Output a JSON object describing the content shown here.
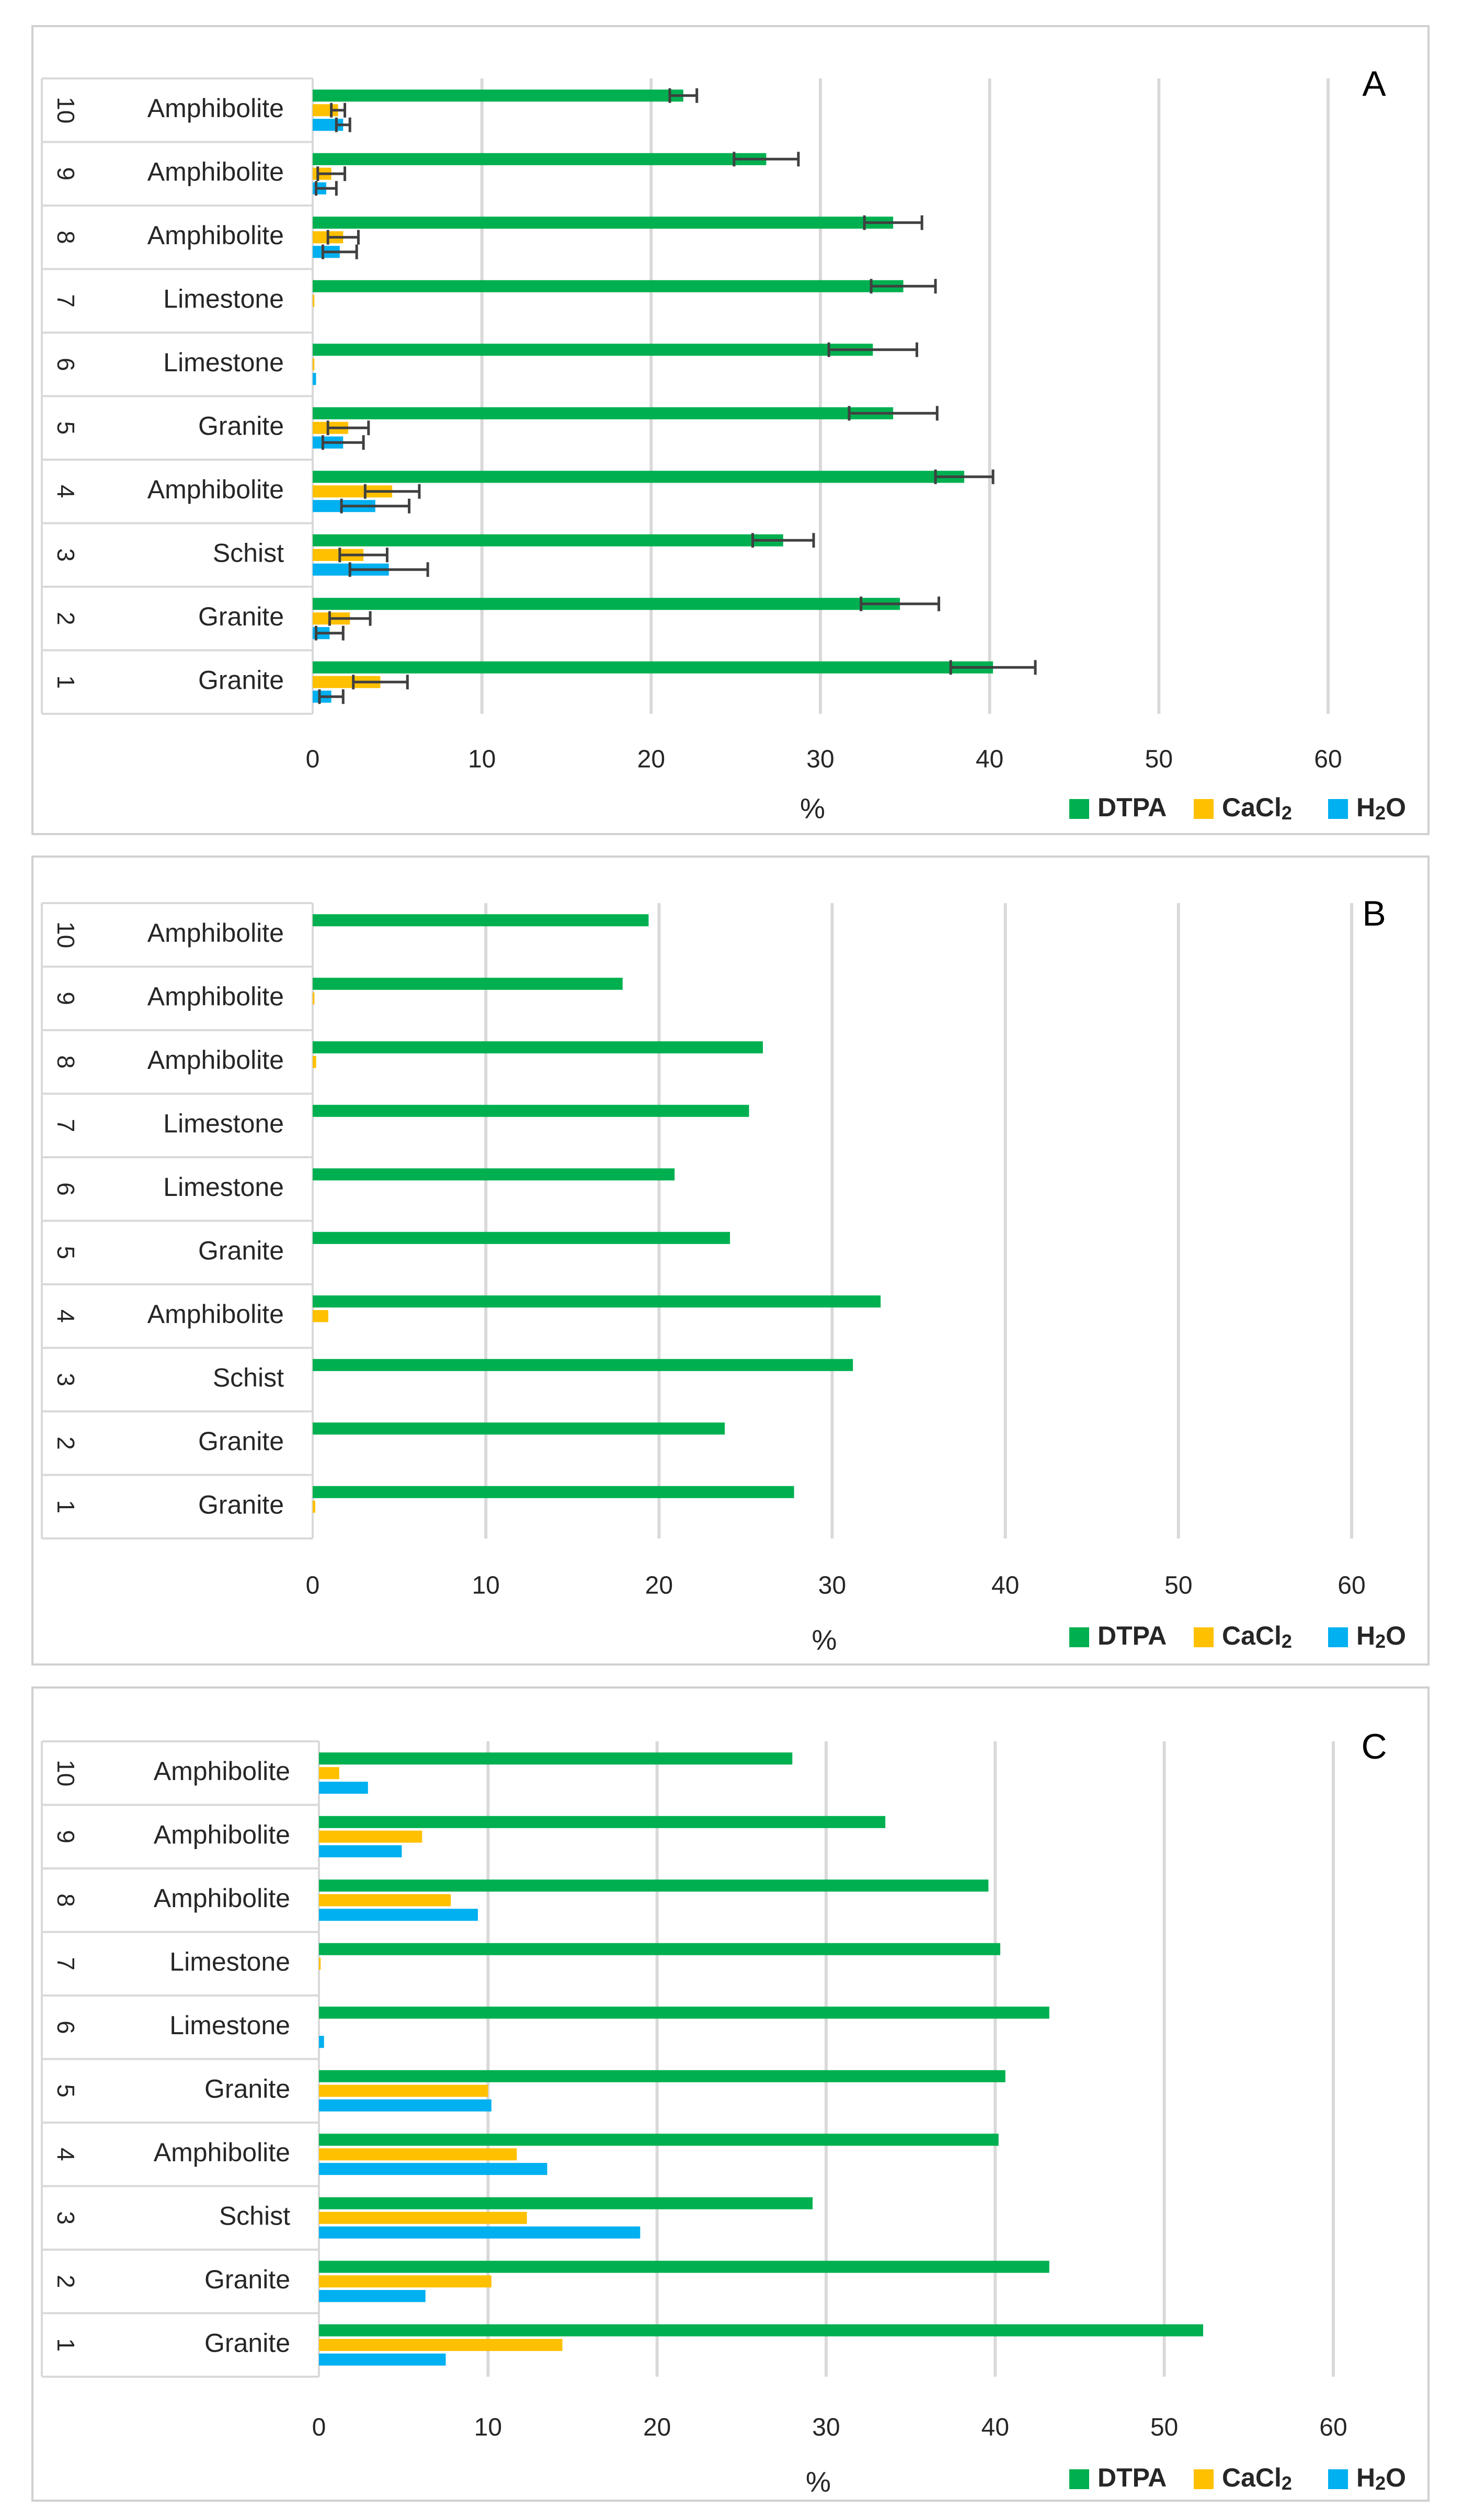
{
  "chart_data": [
    {
      "type": "bar",
      "orientation": "horizontal",
      "panel_label": "A",
      "categories": [
        "1",
        "2",
        "3",
        "4",
        "5",
        "6",
        "7",
        "8",
        "9",
        "10"
      ],
      "category_labels": [
        "Granite",
        "Granite",
        "Schist",
        "Amphibolite",
        "Granite",
        "Limestone",
        "Limestone",
        "Amphibolite",
        "Amphibolite",
        "Amphibolite"
      ],
      "series": [
        {
          "name": "DTPA",
          "sub": "",
          "color": "#00b050",
          "values": [
            40.2,
            34.7,
            27.8,
            38.5,
            34.3,
            33.1,
            34.9,
            34.3,
            26.8,
            21.9
          ],
          "errors": [
            2.5,
            2.3,
            1.8,
            1.7,
            2.6,
            2.6,
            1.9,
            1.7,
            1.9,
            0.8
          ]
        },
        {
          "name": "CaCl",
          "sub": "2",
          "color": "#ffc000",
          "values": [
            4.0,
            2.2,
            3.0,
            4.7,
            2.1,
            0.1,
            0.1,
            1.8,
            1.1,
            1.5
          ],
          "errors": [
            1.6,
            1.2,
            1.4,
            1.6,
            1.2,
            0,
            0,
            0.9,
            0.8,
            0.4
          ]
        },
        {
          "name": "H",
          "sub": "2",
          "suffix": "O",
          "color": "#00b0f0",
          "values": [
            1.1,
            1.0,
            4.5,
            3.7,
            1.8,
            0.2,
            0,
            1.6,
            0.8,
            1.8
          ],
          "errors": [
            0.7,
            0.8,
            2.3,
            2.0,
            1.2,
            0,
            0,
            1.0,
            0.6,
            0.4
          ]
        }
      ],
      "xlabel": "%",
      "xlim": [
        0,
        60
      ],
      "xticks": [
        "0",
        "10",
        "20",
        "30",
        "40",
        "50",
        "60"
      ],
      "error_bars": true,
      "legend_position": "bottom-right"
    },
    {
      "type": "bar",
      "orientation": "horizontal",
      "panel_label": "B",
      "categories": [
        "1",
        "2",
        "3",
        "4",
        "5",
        "6",
        "7",
        "8",
        "9",
        "10"
      ],
      "category_labels": [
        "Granite",
        "Granite",
        "Schist",
        "Amphibolite",
        "Granite",
        "Limestone",
        "Limestone",
        "Amphibolite",
        "Amphibolite",
        "Amphibolite"
      ],
      "series": [
        {
          "name": "DTPA",
          "sub": "",
          "color": "#00b050",
          "values": [
            27.8,
            23.8,
            31.2,
            32.8,
            24.1,
            20.9,
            25.2,
            26.0,
            17.9,
            19.4
          ]
        },
        {
          "name": "CaCl",
          "sub": "2",
          "color": "#ffc000",
          "values": [
            0.15,
            0,
            0,
            0.9,
            0,
            0,
            0,
            0.2,
            0.1,
            0
          ]
        },
        {
          "name": "H",
          "sub": "2",
          "suffix": "O",
          "color": "#00b0f0",
          "values": [
            0,
            0,
            0,
            0,
            0,
            0,
            0,
            0,
            0,
            0
          ]
        }
      ],
      "xlabel": "%",
      "xlim": [
        0,
        60
      ],
      "xticks": [
        "0",
        "10",
        "20",
        "30",
        "40",
        "50",
        "60"
      ],
      "error_bars": false,
      "legend_position": "bottom-right"
    },
    {
      "type": "bar",
      "orientation": "horizontal",
      "panel_label": "C",
      "categories": [
        "1",
        "2",
        "3",
        "4",
        "5",
        "6",
        "7",
        "8",
        "9",
        "10"
      ],
      "category_labels": [
        "Granite",
        "Granite",
        "Schist",
        "Amphibolite",
        "Granite",
        "Limestone",
        "Limestone",
        "Amphibolite",
        "Amphibolite",
        "Amphibolite"
      ],
      "series": [
        {
          "name": "DTPA",
          "sub": "",
          "color": "#00b050",
          "values": [
            52.3,
            43.2,
            29.2,
            40.2,
            40.6,
            43.2,
            40.3,
            39.6,
            33.5,
            28.0
          ]
        },
        {
          "name": "CaCl",
          "sub": "2",
          "color": "#ffc000",
          "values": [
            14.4,
            10.2,
            12.3,
            11.7,
            10.0,
            0,
            0.1,
            7.8,
            6.1,
            1.2
          ]
        },
        {
          "name": "H",
          "sub": "2",
          "suffix": "O",
          "color": "#00b0f0",
          "values": [
            7.5,
            6.3,
            19.0,
            13.5,
            10.2,
            0.3,
            0,
            9.4,
            4.9,
            2.9
          ]
        }
      ],
      "xlabel": "%",
      "xlim": [
        0,
        60
      ],
      "xticks": [
        "0",
        "10",
        "20",
        "30",
        "40",
        "50",
        "60"
      ],
      "error_bars": false,
      "legend_position": "bottom-right"
    }
  ]
}
